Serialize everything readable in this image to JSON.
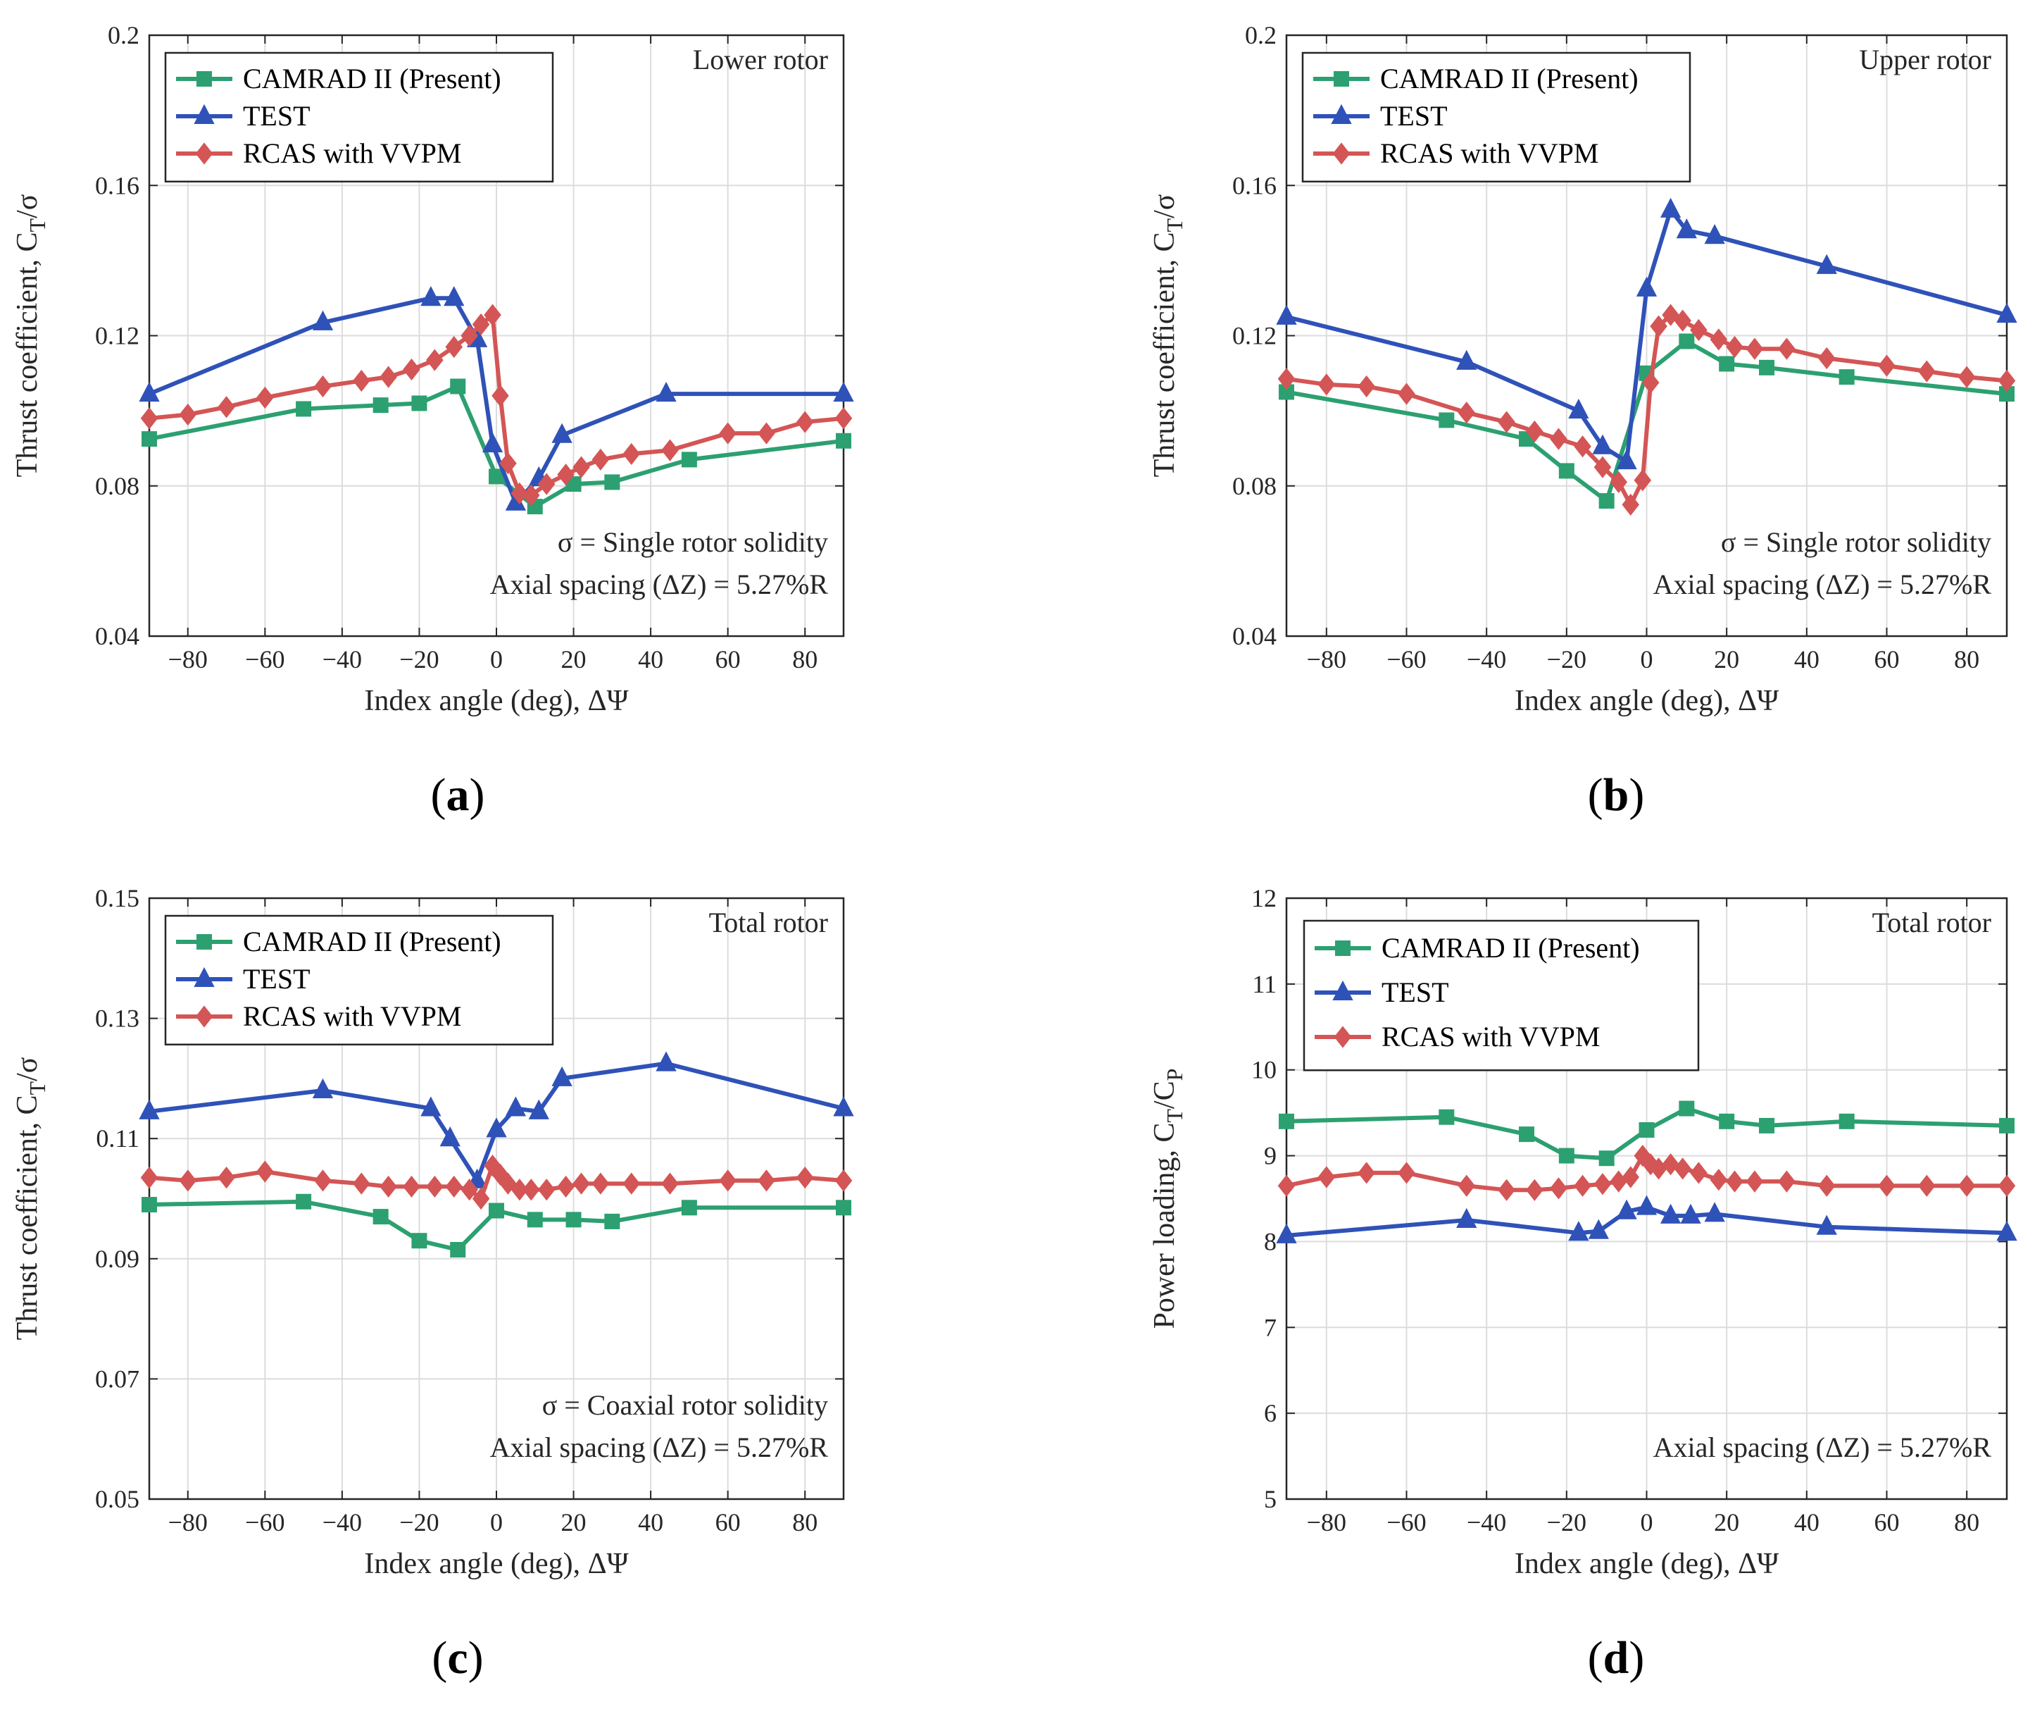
{
  "colors": {
    "camrad": "#2ca070",
    "test": "#2f52b8",
    "rcas": "#d45555",
    "grid": "#dcdcdc",
    "axis": "#262626"
  },
  "legend_labels": [
    "CAMRAD II (Present)",
    "TEST",
    "RCAS with VVPM"
  ],
  "chart_data": [
    {
      "panel": "a",
      "label": "(a)",
      "letter": "a",
      "type": "line",
      "title": "Lower rotor",
      "xlabel": "Index angle (deg), ΔΨ",
      "ylabel_main": "Thrust coefficient, C",
      "ylabel_sub": "T",
      "ylabel_tail": "/σ",
      "xlim": [
        -90,
        90
      ],
      "ylim": [
        0.04,
        0.2
      ],
      "xticks": [
        -80,
        -60,
        -40,
        -20,
        0,
        20,
        40,
        60,
        80
      ],
      "yticks": [
        0.04,
        0.08,
        0.12,
        0.16,
        0.2
      ],
      "yticklabels": [
        "0.04",
        "0.08",
        "0.12",
        "0.16",
        "0.2"
      ],
      "annotations": [
        "σ = Single rotor solidity",
        "Axial spacing (ΔZ) = 5.27%R"
      ],
      "series": [
        {
          "name": "CAMRAD II (Present)",
          "marker": "square",
          "x": [
            -90,
            -50,
            -30,
            -20,
            -10,
            0,
            10,
            20,
            30,
            50,
            90
          ],
          "y": [
            0.0925,
            0.1005,
            0.1015,
            0.102,
            0.1065,
            0.0825,
            0.0745,
            0.0805,
            0.081,
            0.087,
            0.092
          ]
        },
        {
          "name": "TEST",
          "marker": "triangle",
          "x": [
            -90,
            -45,
            -17,
            -11,
            -5,
            -1,
            5,
            11,
            17,
            44,
            90
          ],
          "y": [
            0.1045,
            0.1235,
            0.13,
            0.13,
            0.119,
            0.091,
            0.0755,
            0.082,
            0.0935,
            0.1045,
            0.1045
          ]
        },
        {
          "name": "RCAS with VVPM",
          "marker": "diamond",
          "x": [
            -90,
            -80,
            -70,
            -60,
            -45,
            -35,
            -28,
            -22,
            -16,
            -11,
            -7,
            -4,
            -1,
            1,
            3,
            6,
            9,
            13,
            18,
            22,
            27,
            35,
            45,
            60,
            70,
            80,
            90
          ],
          "y": [
            0.098,
            0.099,
            0.101,
            0.1035,
            0.1065,
            0.108,
            0.109,
            0.111,
            0.1135,
            0.117,
            0.12,
            0.123,
            0.1255,
            0.104,
            0.086,
            0.078,
            0.0775,
            0.0805,
            0.083,
            0.085,
            0.087,
            0.0885,
            0.0895,
            0.094,
            0.094,
            0.097,
            0.098
          ]
        }
      ]
    },
    {
      "panel": "b",
      "label": "(b)",
      "letter": "b",
      "type": "line",
      "title": "Upper rotor",
      "xlabel": "Index angle (deg), ΔΨ",
      "ylabel_main": "Thrust coefficient, C",
      "ylabel_sub": "T",
      "ylabel_tail": "/σ",
      "xlim": [
        -90,
        90
      ],
      "ylim": [
        0.04,
        0.2
      ],
      "xticks": [
        -80,
        -60,
        -40,
        -20,
        0,
        20,
        40,
        60,
        80
      ],
      "yticks": [
        0.04,
        0.08,
        0.12,
        0.16,
        0.2
      ],
      "yticklabels": [
        "0.04",
        "0.08",
        "0.12",
        "0.16",
        "0.2"
      ],
      "annotations": [
        "σ = Single rotor solidity",
        "Axial spacing (ΔZ) = 5.27%R"
      ],
      "series": [
        {
          "name": "CAMRAD II (Present)",
          "marker": "square",
          "x": [
            -90,
            -50,
            -30,
            -20,
            -10,
            0,
            10,
            20,
            30,
            50,
            90
          ],
          "y": [
            0.105,
            0.0975,
            0.0925,
            0.084,
            0.076,
            0.11,
            0.1185,
            0.1125,
            0.1115,
            0.109,
            0.1045
          ]
        },
        {
          "name": "TEST",
          "marker": "triangle",
          "x": [
            -90,
            -45,
            -17,
            -11,
            -5,
            0,
            6,
            10,
            17,
            45,
            90
          ],
          "y": [
            0.125,
            0.113,
            0.1,
            0.0905,
            0.0865,
            0.1325,
            0.1535,
            0.148,
            0.1465,
            0.1385,
            0.1255
          ]
        },
        {
          "name": "RCAS with VVPM",
          "marker": "diamond",
          "x": [
            -90,
            -80,
            -70,
            -60,
            -45,
            -35,
            -28,
            -22,
            -16,
            -11,
            -7,
            -4,
            -1,
            1,
            3,
            6,
            9,
            13,
            18,
            22,
            27,
            35,
            45,
            60,
            70,
            80,
            90
          ],
          "y": [
            0.1085,
            0.107,
            0.1065,
            0.1045,
            0.0995,
            0.097,
            0.0945,
            0.0925,
            0.0905,
            0.085,
            0.081,
            0.075,
            0.0815,
            0.1075,
            0.1225,
            0.1255,
            0.124,
            0.1215,
            0.119,
            0.117,
            0.1165,
            0.1165,
            0.114,
            0.112,
            0.1105,
            0.109,
            0.108
          ]
        }
      ]
    },
    {
      "panel": "c",
      "label": "(c)",
      "letter": "c",
      "type": "line",
      "title": "Total rotor",
      "xlabel": "Index angle (deg), ΔΨ",
      "ylabel_main": "Thrust coefficient, C",
      "ylabel_sub": "T",
      "ylabel_tail": "/σ",
      "xlim": [
        -90,
        90
      ],
      "ylim": [
        0.05,
        0.15
      ],
      "xticks": [
        -80,
        -60,
        -40,
        -20,
        0,
        20,
        40,
        60,
        80
      ],
      "yticks": [
        0.05,
        0.07,
        0.09,
        0.11,
        0.13,
        0.15
      ],
      "yticklabels": [
        "0.05",
        "0.07",
        "0.09",
        "0.11",
        "0.13",
        "0.15"
      ],
      "annotations": [
        "σ = Coaxial rotor solidity",
        "Axial spacing (ΔZ) = 5.27%R"
      ],
      "series": [
        {
          "name": "CAMRAD II (Present)",
          "marker": "square",
          "x": [
            -90,
            -50,
            -30,
            -20,
            -10,
            0,
            10,
            20,
            30,
            50,
            90
          ],
          "y": [
            0.099,
            0.0995,
            0.097,
            0.093,
            0.0915,
            0.098,
            0.0965,
            0.0965,
            0.0962,
            0.0985,
            0.0985
          ]
        },
        {
          "name": "TEST",
          "marker": "triangle",
          "x": [
            -90,
            -45,
            -17,
            -12,
            -5,
            0,
            5,
            11,
            17,
            44,
            90
          ],
          "y": [
            0.1145,
            0.118,
            0.115,
            0.11,
            0.103,
            0.1115,
            0.115,
            0.1145,
            0.12,
            0.1225,
            0.115
          ]
        },
        {
          "name": "RCAS with VVPM",
          "marker": "diamond",
          "x": [
            -90,
            -80,
            -70,
            -60,
            -45,
            -35,
            -28,
            -22,
            -16,
            -11,
            -7,
            -4,
            -1,
            1,
            3,
            6,
            9,
            13,
            18,
            22,
            27,
            35,
            45,
            60,
            70,
            80,
            90
          ],
          "y": [
            0.1035,
            0.103,
            0.1035,
            0.1045,
            0.103,
            0.1025,
            0.102,
            0.102,
            0.102,
            0.102,
            0.1015,
            0.1,
            0.1055,
            0.104,
            0.1025,
            0.1015,
            0.1015,
            0.1015,
            0.102,
            0.1025,
            0.1025,
            0.1025,
            0.1025,
            0.103,
            0.103,
            0.1035,
            0.103
          ]
        }
      ]
    },
    {
      "panel": "d",
      "label": "(d)",
      "letter": "d",
      "type": "line",
      "title": "Total rotor",
      "xlabel": "Index angle (deg), ΔΨ",
      "ylabel_main": "Power loading, C",
      "ylabel_sub": "T",
      "ylabel_tail": "/C",
      "ylabel_sub2": "P",
      "xlim": [
        -90,
        90
      ],
      "ylim": [
        5,
        12
      ],
      "xticks": [
        -80,
        -60,
        -40,
        -20,
        0,
        20,
        40,
        60,
        80
      ],
      "yticks": [
        5,
        6,
        7,
        8,
        9,
        10,
        11,
        12
      ],
      "yticklabels": [
        "5",
        "6",
        "7",
        "8",
        "9",
        "10",
        "11",
        "12"
      ],
      "annotations": [
        "Axial spacing (ΔZ) = 5.27%R"
      ],
      "series": [
        {
          "name": "CAMRAD II (Present)",
          "marker": "square",
          "x": [
            -90,
            -50,
            -30,
            -20,
            -10,
            0,
            10,
            20,
            30,
            50,
            90
          ],
          "y": [
            9.4,
            9.45,
            9.25,
            9.0,
            8.97,
            9.3,
            9.55,
            9.4,
            9.35,
            9.4,
            9.35
          ]
        },
        {
          "name": "TEST",
          "marker": "triangle",
          "x": [
            -90,
            -45,
            -17,
            -12,
            -5,
            0,
            6,
            11,
            17,
            45,
            90
          ],
          "y": [
            8.07,
            8.25,
            8.1,
            8.12,
            8.35,
            8.4,
            8.3,
            8.3,
            8.32,
            8.17,
            8.1
          ]
        },
        {
          "name": "RCAS with VVPM",
          "marker": "diamond",
          "x": [
            -90,
            -80,
            -70,
            -60,
            -45,
            -35,
            -28,
            -22,
            -16,
            -11,
            -7,
            -4,
            -1,
            1,
            3,
            6,
            9,
            13,
            18,
            22,
            27,
            35,
            45,
            60,
            70,
            80,
            90
          ],
          "y": [
            8.65,
            8.75,
            8.8,
            8.8,
            8.65,
            8.6,
            8.6,
            8.62,
            8.65,
            8.67,
            8.7,
            8.75,
            9.0,
            8.9,
            8.85,
            8.9,
            8.85,
            8.8,
            8.72,
            8.7,
            8.7,
            8.7,
            8.65,
            8.65,
            8.65,
            8.65,
            8.65
          ]
        }
      ]
    }
  ]
}
